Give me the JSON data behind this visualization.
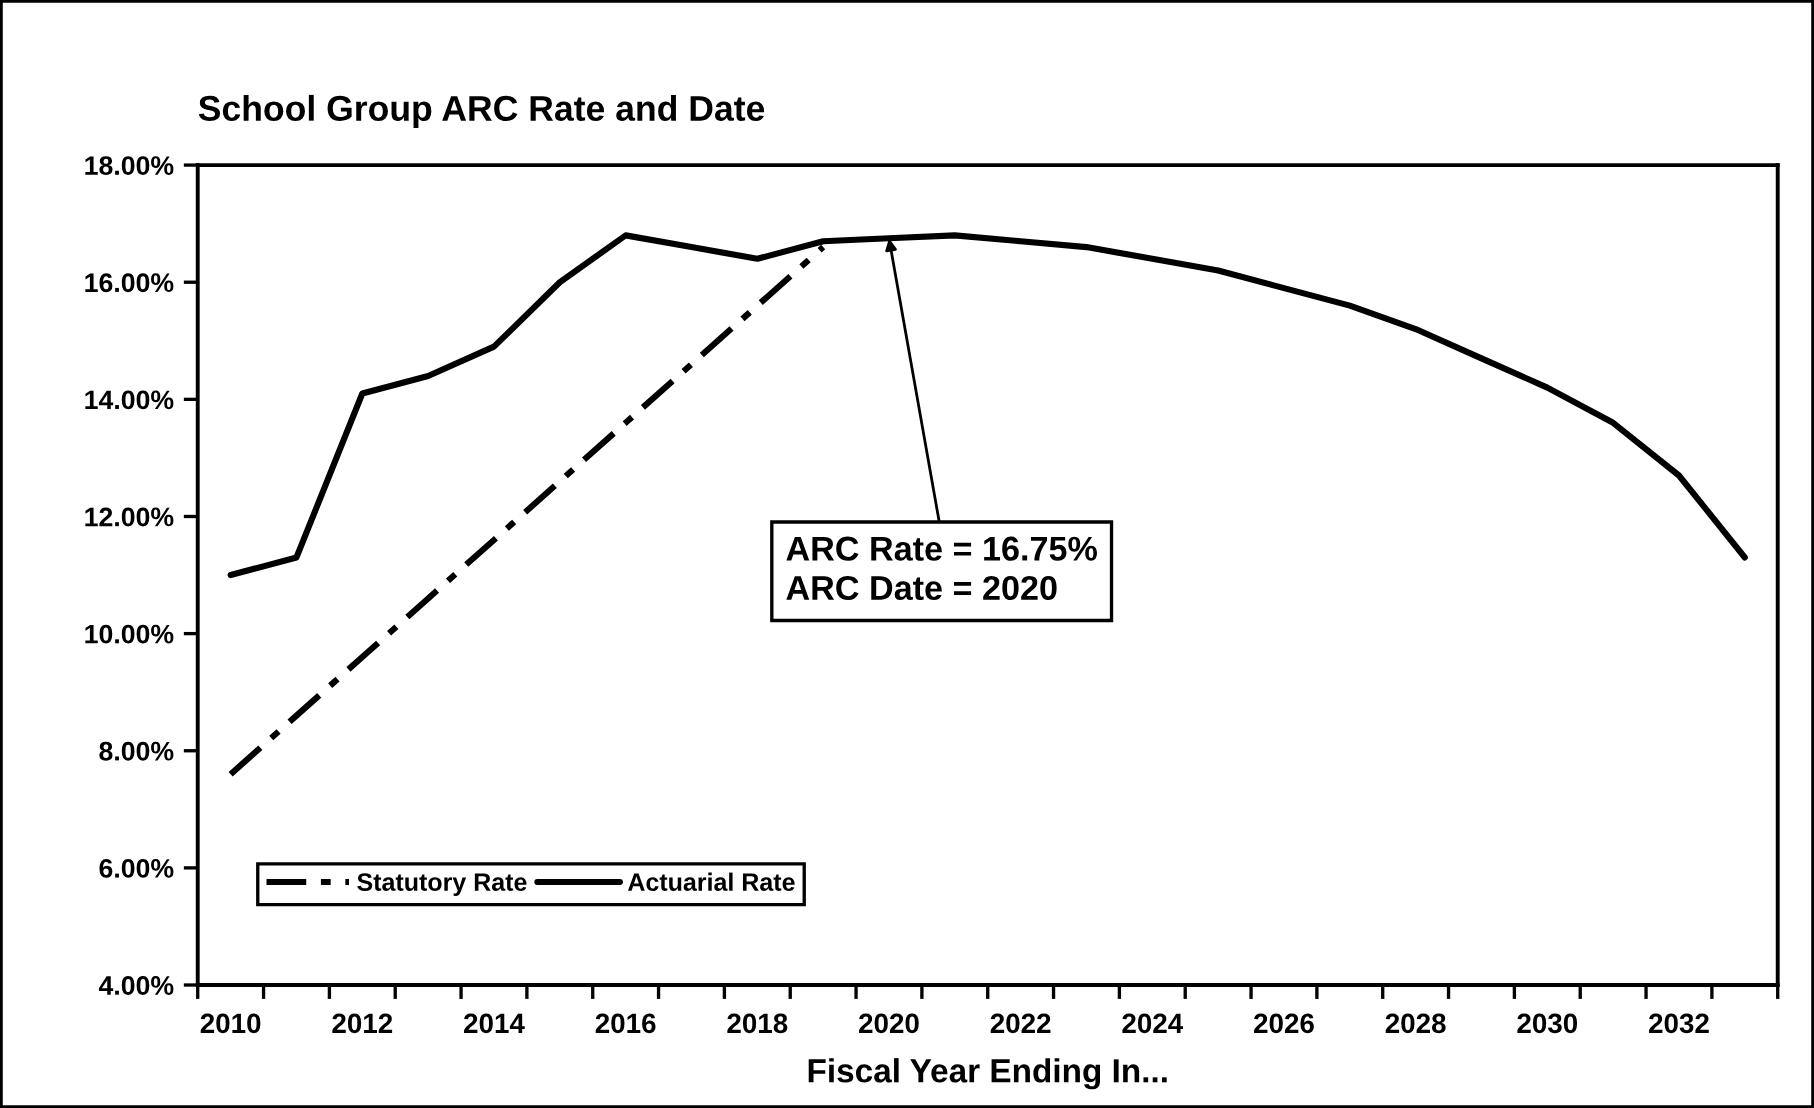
{
  "chart_data": {
    "type": "line",
    "title": "School Group ARC Rate and Date",
    "xlabel": "Fiscal Year Ending In...",
    "categories": [
      "2010",
      null,
      "2012",
      null,
      "2014",
      null,
      "2016",
      null,
      "2018",
      null,
      "2020",
      null,
      "2022",
      null,
      "2024",
      null,
      "2026",
      null,
      "2028",
      null,
      "2030",
      null,
      "2032",
      null
    ],
    "series": [
      {
        "name": "Statutory Rate",
        "color": "#000000",
        "line_style": "dashed",
        "values": [
          7.6,
          8.6,
          9.6,
          10.6,
          11.6,
          12.6,
          13.6,
          14.6,
          15.6,
          16.6,
          null,
          null,
          null,
          null,
          null,
          null,
          null,
          null,
          null,
          null,
          null,
          null,
          null,
          null
        ]
      },
      {
        "name": "Actuarial Rate",
        "color": "#000000",
        "line_style": "solid",
        "values": [
          11.0,
          11.3,
          14.1,
          14.4,
          14.9,
          16.0,
          16.8,
          16.6,
          16.4,
          16.7,
          16.75,
          16.8,
          16.7,
          16.6,
          16.4,
          16.2,
          15.9,
          15.6,
          15.2,
          14.7,
          14.2,
          13.6,
          12.7,
          11.3
        ]
      }
    ],
    "ylim": [
      4,
      18
    ],
    "yticks": [
      {
        "value": 4,
        "label": "4.00%"
      },
      {
        "value": 6,
        "label": "6.00%"
      },
      {
        "value": 8,
        "label": "8.00%"
      },
      {
        "value": 10,
        "label": "10.00%"
      },
      {
        "value": 12,
        "label": "12.00%"
      },
      {
        "value": 14,
        "label": "14.00%"
      },
      {
        "value": 16,
        "label": "16.00%"
      },
      {
        "value": 18,
        "label": "18.00%"
      }
    ],
    "legend": "bottom left",
    "annotations": [
      {
        "text": "ARC Rate = 16.75%\nARC Date = 2020",
        "x": "2020",
        "y": 16.75
      }
    ]
  }
}
